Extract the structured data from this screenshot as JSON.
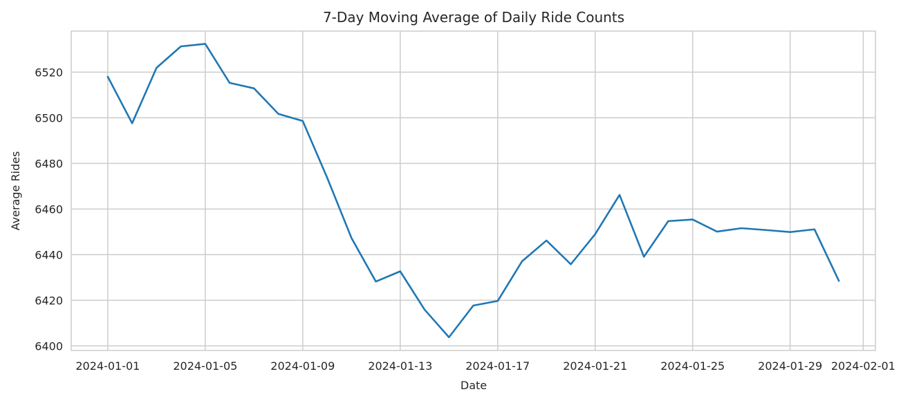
{
  "chart_data": {
    "type": "line",
    "title": "7-Day Moving Average of Daily Ride Counts",
    "xlabel": "Date",
    "ylabel": "Average Rides",
    "ylim": [
      6398,
      6538
    ],
    "xlim": [
      "2023-12-30T12:00",
      "2024-02-01T12:00"
    ],
    "grid": true,
    "x_ticks": [
      "2024-01-01",
      "2024-01-05",
      "2024-01-09",
      "2024-01-13",
      "2024-01-17",
      "2024-01-21",
      "2024-01-25",
      "2024-01-29",
      "2024-02-01"
    ],
    "y_ticks": [
      6400,
      6420,
      6440,
      6460,
      6480,
      6500,
      6520
    ],
    "line_color": "#1f77b4",
    "series": [
      {
        "x": [
          "2024-01-01",
          "2024-01-02",
          "2024-01-03",
          "2024-01-04",
          "2024-01-05",
          "2024-01-06",
          "2024-01-07",
          "2024-01-08",
          "2024-01-09",
          "2024-01-10",
          "2024-01-11",
          "2024-01-12",
          "2024-01-13",
          "2024-01-14",
          "2024-01-15",
          "2024-01-16",
          "2024-01-17",
          "2024-01-18",
          "2024-01-19",
          "2024-01-20",
          "2024-01-21",
          "2024-01-22",
          "2024-01-23",
          "2024-01-24",
          "2024-01-25",
          "2024-01-26",
          "2024-01-27",
          "2024-01-28",
          "2024-01-29",
          "2024-01-30",
          "2024-01-31"
        ],
        "values": [
          6518,
          6497.6,
          6521.9,
          6531.3,
          6532.4,
          6515.3,
          6512.9,
          6501.7,
          6498.6,
          6473.8,
          6447.3,
          6428.2,
          6432.7,
          6415.9,
          6403.8,
          6417.7,
          6419.7,
          6437.1,
          6446.2,
          6435.8,
          6449.0,
          6466.2,
          6439.1,
          6454.7,
          6455.4,
          6450.1,
          6451.6,
          6450.8,
          6449.9,
          6451.1,
          6428.5
        ]
      }
    ]
  }
}
